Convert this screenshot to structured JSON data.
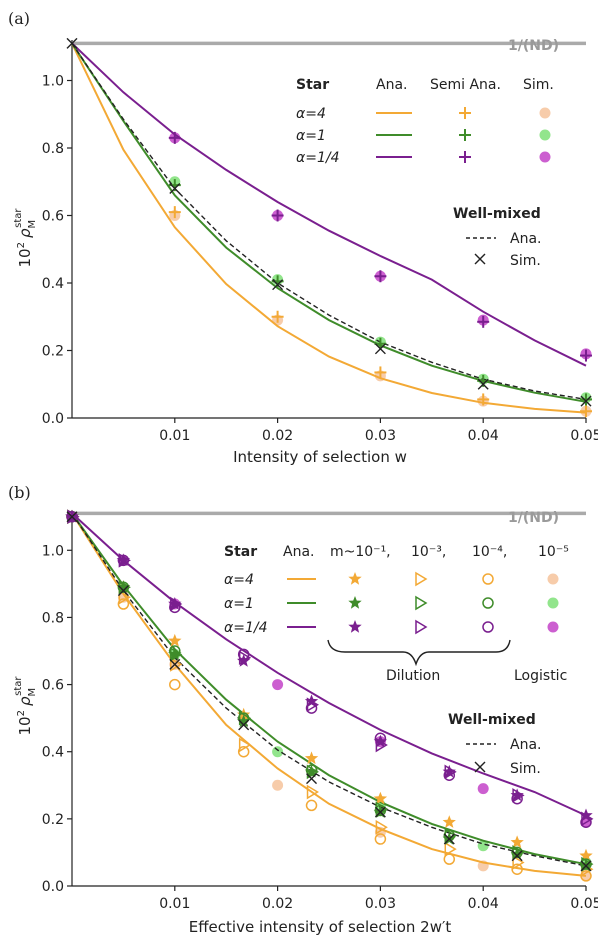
{
  "colors": {
    "a4": "#f3a935",
    "a4_light": "#f7ccaa",
    "a1": "#3f8c2a",
    "a1_light": "#92e58c",
    "a14": "#7a1f8f",
    "a14_light": "#cc5fd0",
    "ref": "#aaaaaa",
    "wm": "#222222"
  },
  "chart_data": [
    {
      "type": "line",
      "panel_label": "(a)",
      "xlabel": "Intensity of selection w",
      "ylabel_html": "10² ρ_M^star",
      "ylabel_base": "10",
      "ylabel_exp": "2",
      "ylabel_sym": "ρ",
      "ylabel_sub": "M",
      "ylabel_sup": "star",
      "xlim": [
        0,
        0.05
      ],
      "ylim": [
        0,
        1.12
      ],
      "xticks": [
        "0.01",
        "0.02",
        "0.03",
        "0.04",
        "0.05"
      ],
      "xtick_values": [
        0.01,
        0.02,
        0.03,
        0.04,
        0.05
      ],
      "yticks": [
        "0.0",
        "0.2",
        "0.4",
        "0.6",
        "0.8",
        "1.0"
      ],
      "ytick_values": [
        0.0,
        0.2,
        0.4,
        0.6,
        0.8,
        1.0
      ],
      "reference_line": {
        "label": "1/(ND)",
        "y": 1.11
      },
      "legend": {
        "title": "Star",
        "headers": [
          "Ana.",
          "Semi Ana.",
          "Sim."
        ],
        "rows": [
          "α=4",
          "α=1",
          "α=1/4"
        ]
      },
      "legend_wm": {
        "title": "Well-mixed",
        "labels": [
          "Ana.",
          "Sim."
        ]
      },
      "series": [
        {
          "name": "α=4",
          "color_key": "a4",
          "ana_x": [
            0,
            0.005,
            0.01,
            0.015,
            0.02,
            0.025,
            0.03,
            0.035,
            0.04,
            0.045,
            0.05
          ],
          "ana_y": [
            1.11,
            0.795,
            0.565,
            0.397,
            0.272,
            0.182,
            0.118,
            0.074,
            0.045,
            0.027,
            0.016
          ],
          "semi_x": [
            0.01,
            0.02,
            0.03,
            0.04,
            0.05
          ],
          "semi_y": [
            0.61,
            0.3,
            0.135,
            0.055,
            0.02
          ],
          "sim_x": [
            0.01,
            0.02,
            0.03,
            0.04,
            0.05
          ],
          "sim_y": [
            0.6,
            0.29,
            0.125,
            0.05,
            0.02
          ]
        },
        {
          "name": "α=1",
          "color_key": "a1",
          "ana_x": [
            0,
            0.005,
            0.01,
            0.015,
            0.02,
            0.025,
            0.03,
            0.035,
            0.04,
            0.045,
            0.05
          ],
          "ana_y": [
            1.11,
            0.88,
            0.66,
            0.505,
            0.385,
            0.29,
            0.215,
            0.155,
            0.11,
            0.075,
            0.048
          ],
          "semi_x": [
            0.01,
            0.02,
            0.03,
            0.04,
            0.05
          ],
          "semi_y": [
            0.69,
            0.405,
            0.22,
            0.11,
            0.055
          ],
          "sim_x": [
            0.01,
            0.02,
            0.03,
            0.04,
            0.05
          ],
          "sim_y": [
            0.7,
            0.41,
            0.225,
            0.115,
            0.06
          ]
        },
        {
          "name": "α=1/4",
          "color_key": "a14",
          "ana_x": [
            0,
            0.005,
            0.01,
            0.015,
            0.02,
            0.025,
            0.03,
            0.035,
            0.04,
            0.045,
            0.05
          ],
          "ana_y": [
            1.11,
            0.965,
            0.84,
            0.735,
            0.64,
            0.555,
            0.48,
            0.41,
            0.315,
            0.23,
            0.155
          ],
          "semi_x": [
            0.01,
            0.02,
            0.03,
            0.04,
            0.05
          ],
          "semi_y": [
            0.83,
            0.6,
            0.42,
            0.285,
            0.185
          ],
          "sim_x": [
            0.01,
            0.02,
            0.03,
            0.04,
            0.05
          ],
          "sim_y": [
            0.83,
            0.6,
            0.42,
            0.29,
            0.19
          ]
        }
      ],
      "wellmixed": {
        "ana_x": [
          0,
          0.005,
          0.01,
          0.015,
          0.02,
          0.025,
          0.03,
          0.035,
          0.04,
          0.045,
          0.05
        ],
        "ana_y": [
          1.11,
          0.885,
          0.68,
          0.525,
          0.4,
          0.305,
          0.225,
          0.165,
          0.115,
          0.08,
          0.055
        ],
        "sim_x": [
          0,
          0.01,
          0.02,
          0.03,
          0.04,
          0.05
        ],
        "sim_y": [
          1.11,
          0.68,
          0.395,
          0.205,
          0.1,
          0.05
        ]
      }
    },
    {
      "type": "line",
      "panel_label": "(b)",
      "xlabel": "Effective intensity of selection 2w′t",
      "ylabel_base": "10",
      "ylabel_exp": "2",
      "ylabel_sym": "ρ",
      "ylabel_sub": "M",
      "ylabel_sup": "star",
      "xlim": [
        0,
        0.05
      ],
      "ylim": [
        0,
        1.12
      ],
      "xticks": [
        "0.01",
        "0.02",
        "0.03",
        "0.04",
        "0.05"
      ],
      "xtick_values": [
        0.01,
        0.02,
        0.03,
        0.04,
        0.05
      ],
      "yticks": [
        "0.0",
        "0.2",
        "0.4",
        "0.6",
        "0.8",
        "1.0"
      ],
      "ytick_values": [
        0.0,
        0.2,
        0.4,
        0.6,
        0.8,
        1.0
      ],
      "reference_line": {
        "label": "1/(ND)",
        "y": 1.11
      },
      "legend": {
        "title": "Star",
        "headers": [
          "Ana.",
          "m~10⁻¹,",
          "10⁻³,",
          "10⁻⁴,",
          "10⁻⁵"
        ],
        "rows": [
          "α=4",
          "α=1",
          "α=1/4"
        ],
        "dilution_label": "Dilution",
        "logistic_label": "Logistic"
      },
      "legend_wm": {
        "title": "Well-mixed",
        "labels": [
          "Ana.",
          "Sim."
        ]
      },
      "series": [
        {
          "name": "α=4",
          "color_key": "a4",
          "ana_x": [
            0,
            0.005,
            0.01,
            0.015,
            0.02,
            0.025,
            0.03,
            0.035,
            0.04,
            0.045,
            0.05
          ],
          "ana_y": [
            1.11,
            0.87,
            0.66,
            0.48,
            0.35,
            0.245,
            0.17,
            0.11,
            0.07,
            0.045,
            0.03
          ],
          "star_x": [
            0,
            0.005,
            0.01,
            0.0167,
            0.0233,
            0.03,
            0.0367,
            0.0433,
            0.05
          ],
          "star_y": [
            1.1,
            0.89,
            0.73,
            0.51,
            0.38,
            0.26,
            0.19,
            0.13,
            0.09
          ],
          "tri_x": [
            0,
            0.005,
            0.01,
            0.0167,
            0.0233,
            0.03,
            0.0367,
            0.0433,
            0.05
          ],
          "tri_y": [
            1.1,
            0.86,
            0.66,
            0.42,
            0.28,
            0.175,
            0.11,
            0.07,
            0.05
          ],
          "circ_x": [
            0,
            0.005,
            0.01,
            0.0167,
            0.0233,
            0.03,
            0.0367,
            0.0433,
            0.05
          ],
          "circ_y": [
            1.1,
            0.84,
            0.6,
            0.4,
            0.24,
            0.14,
            0.08,
            0.05,
            0.03
          ],
          "dot_x": [
            0,
            0.005,
            0.01,
            0.02,
            0.03,
            0.04,
            0.05
          ],
          "dot_y": [
            1.1,
            0.86,
            0.66,
            0.3,
            0.16,
            0.06,
            0.03
          ]
        },
        {
          "name": "α=1",
          "color_key": "a1",
          "ana_x": [
            0,
            0.005,
            0.01,
            0.015,
            0.02,
            0.025,
            0.03,
            0.035,
            0.04,
            0.045,
            0.05
          ],
          "ana_y": [
            1.11,
            0.895,
            0.705,
            0.555,
            0.43,
            0.33,
            0.25,
            0.185,
            0.135,
            0.095,
            0.065
          ],
          "star_x": [
            0,
            0.005,
            0.01,
            0.0167,
            0.0233,
            0.03,
            0.0367,
            0.0433,
            0.05
          ],
          "star_y": [
            1.1,
            0.89,
            0.69,
            0.49,
            0.34,
            0.22,
            0.14,
            0.095,
            0.06
          ],
          "tri_x": [
            0,
            0.005,
            0.01,
            0.0167,
            0.0233,
            0.03,
            0.0367,
            0.0433,
            0.05
          ],
          "tri_y": [
            1.1,
            0.89,
            0.69,
            0.5,
            0.34,
            0.23,
            0.15,
            0.1,
            0.065
          ],
          "circ_x": [
            0,
            0.005,
            0.01,
            0.0167,
            0.0233,
            0.03,
            0.0367,
            0.0433,
            0.05
          ],
          "circ_y": [
            1.1,
            0.89,
            0.7,
            0.5,
            0.345,
            0.225,
            0.15,
            0.1,
            0.065
          ],
          "dot_x": [
            0,
            0.005,
            0.01,
            0.02,
            0.03,
            0.04,
            0.05
          ],
          "dot_y": [
            1.1,
            0.89,
            0.69,
            0.4,
            0.24,
            0.12,
            0.07
          ]
        },
        {
          "name": "α=1/4",
          "color_key": "a14",
          "ana_x": [
            0,
            0.005,
            0.01,
            0.015,
            0.02,
            0.025,
            0.03,
            0.035,
            0.04,
            0.045,
            0.05
          ],
          "ana_y": [
            1.11,
            0.97,
            0.845,
            0.735,
            0.635,
            0.545,
            0.465,
            0.395,
            0.335,
            0.28,
            0.21
          ],
          "star_x": [
            0,
            0.005,
            0.01,
            0.0167,
            0.0233,
            0.03,
            0.0367,
            0.0433,
            0.05
          ],
          "star_y": [
            1.1,
            0.97,
            0.84,
            0.67,
            0.55,
            0.43,
            0.34,
            0.27,
            0.21
          ],
          "tri_x": [
            0,
            0.005,
            0.01,
            0.0167,
            0.0233,
            0.03,
            0.0367,
            0.0433,
            0.05
          ],
          "tri_y": [
            1.1,
            0.97,
            0.84,
            0.68,
            0.54,
            0.42,
            0.34,
            0.27,
            0.2
          ],
          "circ_x": [
            0,
            0.005,
            0.01,
            0.0167,
            0.0233,
            0.03,
            0.0367,
            0.0433,
            0.05
          ],
          "circ_y": [
            1.1,
            0.97,
            0.83,
            0.69,
            0.53,
            0.44,
            0.33,
            0.26,
            0.19
          ],
          "dot_x": [
            0,
            0.005,
            0.01,
            0.02,
            0.03,
            0.04,
            0.05
          ],
          "dot_y": [
            1.1,
            0.97,
            0.84,
            0.6,
            0.43,
            0.29,
            0.19
          ]
        }
      ],
      "wellmixed": {
        "ana_x": [
          0,
          0.005,
          0.01,
          0.015,
          0.02,
          0.025,
          0.03,
          0.035,
          0.04,
          0.045,
          0.05
        ],
        "ana_y": [
          1.11,
          0.88,
          0.68,
          0.53,
          0.405,
          0.31,
          0.235,
          0.175,
          0.125,
          0.09,
          0.06
        ],
        "sim_x": [
          0,
          0.005,
          0.01,
          0.0167,
          0.0233,
          0.03,
          0.0367,
          0.0433,
          0.05
        ],
        "sim_y": [
          1.1,
          0.88,
          0.66,
          0.48,
          0.32,
          0.22,
          0.14,
          0.09,
          0.06
        ]
      }
    }
  ]
}
